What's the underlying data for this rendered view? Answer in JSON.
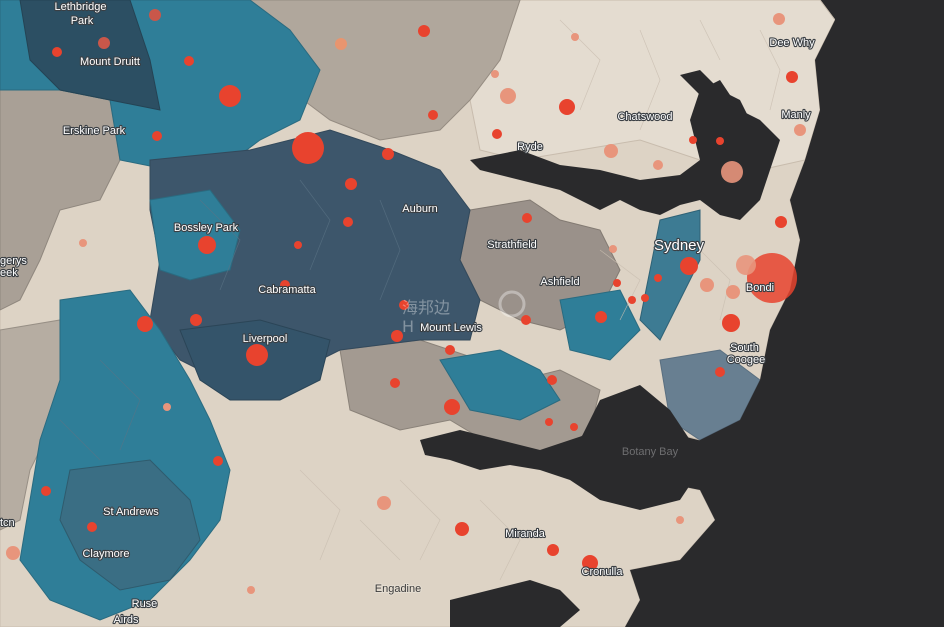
{
  "map": {
    "colors": {
      "ocean": "#2a2a2c",
      "land_light": "#ddd3c5",
      "land_mid": "#a79d93",
      "teal": "#2f7e98",
      "teal_dark": "#2c4f63",
      "slate": "#3d566b",
      "grey_blue": "#687f91",
      "dot": "#e8432e",
      "dot_light": "#e8957c"
    },
    "labels": {
      "lethbridge_park": "Lethbridge\nPark",
      "mount_druitt": "Mount Druitt",
      "erskine_park": "Erskine Park",
      "bossley_park": "Bossley Park",
      "cabramatta": "Cabramatta",
      "liverpool": "Liverpool",
      "gerys_creek": "gerys\neek",
      "st_andrews": "St Andrews",
      "claymore": "Claymore",
      "rouse_airds": "Ruse\nAirds",
      "ryde": "Ryde",
      "auburn": "Auburn",
      "strathfield": "Strathfield",
      "ashfield": "Ashfield",
      "mount_lewis": "Mount Lewis",
      "chatswood": "Chatswood",
      "dee_why": "Dee Why",
      "manly": "Manly",
      "sydney": "Sydney",
      "bondi": "Bondi",
      "south_coogee": "South\nCoogee",
      "botany_bay": "Botany Bay",
      "miranda": "Miranda",
      "cronulla": "Cronulla",
      "engadine": "Engadine",
      "edge_left": "tcn"
    },
    "watermark": {
      "chinese": "海邦边",
      "latin": "H"
    }
  }
}
